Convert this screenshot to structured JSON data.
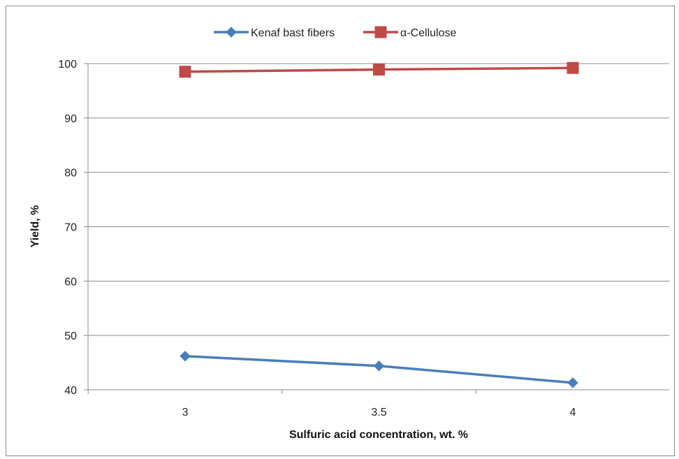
{
  "chart_data": {
    "type": "line",
    "title": "",
    "x": [
      3,
      3.5,
      4
    ],
    "x_tick_labels": [
      "3",
      "3.5",
      "4"
    ],
    "xlabel": "Sulfuric acid concentration, wt. %",
    "ylabel": "Yield, %",
    "ylim": [
      40,
      100
    ],
    "y_ticks": [
      40,
      50,
      60,
      70,
      80,
      90,
      100
    ],
    "grid": "horizontal",
    "legend_position": "top",
    "series": [
      {
        "name": "Kenaf bast fibers",
        "values": [
          46.2,
          44.4,
          41.3
        ],
        "color": "#4a7ebb",
        "marker": "diamond"
      },
      {
        "name": "α-Cellulose",
        "values": [
          98.5,
          98.9,
          99.2
        ],
        "color": "#be4b48",
        "marker": "square"
      }
    ]
  }
}
